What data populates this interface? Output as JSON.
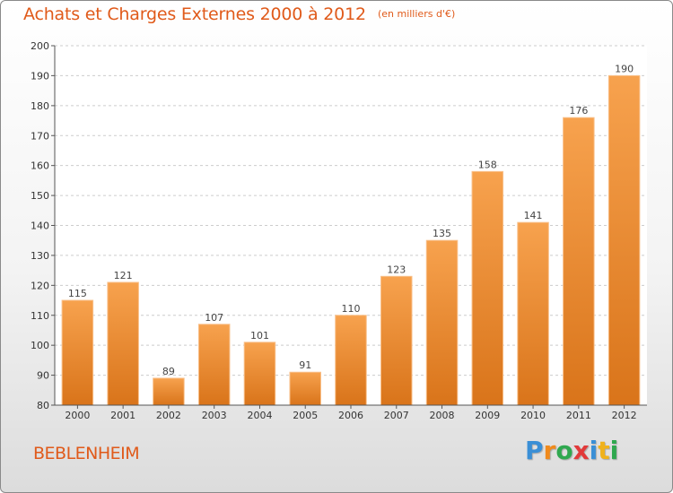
{
  "title": "Achats et Charges Externes 2000 à 2012",
  "subtitle": "(en milliers d'€)",
  "place": "BEBLENHEIM",
  "logo": {
    "letters": [
      "P",
      "r",
      "o",
      "x",
      "i",
      "t",
      "i"
    ],
    "colors": [
      "#3a8fd6",
      "#f08a1c",
      "#2fa84f",
      "#e23a3a",
      "#3a8fd6",
      "#f0b21c",
      "#2fa84f"
    ]
  },
  "colors": {
    "title": "#e05a1a",
    "bar_top": "#f7a24e",
    "bar_bottom": "#d9741a",
    "bar_stroke": "#f9c08a",
    "grid": "#cccccc",
    "axis": "#555555"
  },
  "chart_data": {
    "type": "bar",
    "categories": [
      "2000",
      "2001",
      "2002",
      "2003",
      "2004",
      "2005",
      "2006",
      "2007",
      "2008",
      "2009",
      "2010",
      "2011",
      "2012"
    ],
    "values": [
      115,
      121,
      89,
      107,
      101,
      91,
      110,
      123,
      135,
      158,
      141,
      176,
      190
    ],
    "ylim": [
      80,
      200
    ],
    "yticks": [
      80,
      90,
      100,
      110,
      120,
      130,
      140,
      150,
      160,
      170,
      180,
      190,
      200
    ],
    "grid": "horizontal-dashed",
    "title": "Achats et Charges Externes 2000 à 2012",
    "xlabel": "",
    "ylabel": ""
  }
}
